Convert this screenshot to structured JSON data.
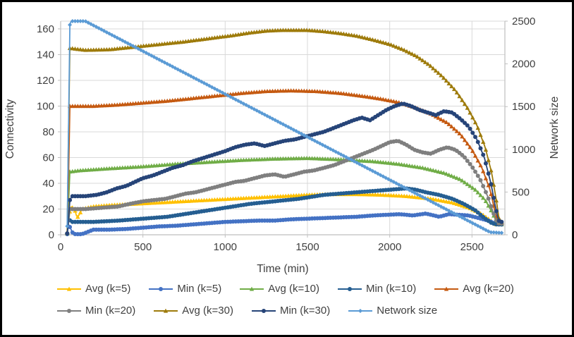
{
  "chart_data": {
    "type": "line",
    "title": "",
    "xlabel": "Time (min)",
    "ylabel_left": "Connectivity",
    "ylabel_right": "Network size",
    "x_ticks": [
      0,
      500,
      1000,
      1500,
      2000,
      2500
    ],
    "y_left_ticks": [
      0,
      20,
      40,
      60,
      80,
      100,
      120,
      140,
      160
    ],
    "y_right_ticks": [
      0,
      500,
      1000,
      1500,
      2000,
      2500
    ],
    "x_range": [
      0,
      2700
    ],
    "y_left_range": [
      0,
      166
    ],
    "y_right_range": [
      0,
      2500
    ],
    "grid": true,
    "legend_position": "bottom",
    "marker_interval_min": 16,
    "series": [
      {
        "name": "Avg (k=5)",
        "color": "#FFC000",
        "marker": "triangle",
        "axis": "left",
        "points": [
          [
            40,
            1
          ],
          [
            52,
            14
          ],
          [
            60,
            22
          ],
          [
            85,
            20
          ],
          [
            100,
            13
          ],
          [
            115,
            16
          ],
          [
            130,
            20
          ],
          [
            200,
            22
          ],
          [
            300,
            23
          ],
          [
            450,
            24
          ],
          [
            600,
            25
          ],
          [
            750,
            26
          ],
          [
            900,
            27
          ],
          [
            1050,
            28
          ],
          [
            1200,
            29
          ],
          [
            1350,
            30
          ],
          [
            1500,
            31
          ],
          [
            1650,
            31.5
          ],
          [
            1800,
            31.5
          ],
          [
            1950,
            31
          ],
          [
            2100,
            30
          ],
          [
            2250,
            28
          ],
          [
            2380,
            25
          ],
          [
            2480,
            21
          ],
          [
            2560,
            16
          ],
          [
            2615,
            11
          ],
          [
            2645,
            8
          ],
          [
            2690,
            8
          ]
        ]
      },
      {
        "name": "Min (k=5)",
        "color": "#4472C4",
        "marker": "circle",
        "axis": "left",
        "points": [
          [
            40,
            0.5
          ],
          [
            48,
            8
          ],
          [
            60,
            5
          ],
          [
            75,
            1
          ],
          [
            90,
            0.5
          ],
          [
            130,
            0.5
          ],
          [
            160,
            2
          ],
          [
            200,
            4
          ],
          [
            300,
            4
          ],
          [
            400,
            4.5
          ],
          [
            500,
            5.5
          ],
          [
            600,
            6.5
          ],
          [
            700,
            7
          ],
          [
            800,
            8
          ],
          [
            900,
            9
          ],
          [
            1000,
            10
          ],
          [
            1100,
            10.5
          ],
          [
            1200,
            11
          ],
          [
            1300,
            11
          ],
          [
            1400,
            12
          ],
          [
            1500,
            12.5
          ],
          [
            1600,
            13
          ],
          [
            1700,
            13.5
          ],
          [
            1800,
            14
          ],
          [
            1900,
            15
          ],
          [
            1980,
            15.5
          ],
          [
            2060,
            16
          ],
          [
            2140,
            15
          ],
          [
            2220,
            16.5
          ],
          [
            2300,
            14
          ],
          [
            2360,
            16
          ],
          [
            2420,
            15.5
          ],
          [
            2480,
            15
          ],
          [
            2540,
            13
          ],
          [
            2600,
            11
          ],
          [
            2645,
            8.5
          ],
          [
            2690,
            8
          ]
        ]
      },
      {
        "name": "Avg (k=10)",
        "color": "#70AD47",
        "marker": "triangle",
        "axis": "left",
        "points": [
          [
            40,
            1
          ],
          [
            50,
            30
          ],
          [
            56,
            49
          ],
          [
            120,
            50
          ],
          [
            300,
            51.5
          ],
          [
            500,
            53
          ],
          [
            700,
            55
          ],
          [
            900,
            56.5
          ],
          [
            1100,
            58
          ],
          [
            1300,
            59
          ],
          [
            1500,
            59.5
          ],
          [
            1700,
            58.5
          ],
          [
            1900,
            57
          ],
          [
            2050,
            55
          ],
          [
            2200,
            52
          ],
          [
            2330,
            48
          ],
          [
            2430,
            43
          ],
          [
            2520,
            35
          ],
          [
            2580,
            27
          ],
          [
            2620,
            18
          ],
          [
            2650,
            10
          ],
          [
            2665,
            8
          ],
          [
            2690,
            8
          ]
        ]
      },
      {
        "name": "Min (k=10)",
        "color": "#255E91",
        "marker": "circle",
        "axis": "left",
        "points": [
          [
            40,
            1
          ],
          [
            50,
            13
          ],
          [
            60,
            10
          ],
          [
            200,
            10
          ],
          [
            350,
            11
          ],
          [
            500,
            12.5
          ],
          [
            650,
            14
          ],
          [
            800,
            17
          ],
          [
            900,
            19
          ],
          [
            1000,
            21
          ],
          [
            1150,
            24
          ],
          [
            1300,
            26
          ],
          [
            1450,
            28
          ],
          [
            1600,
            31
          ],
          [
            1700,
            32
          ],
          [
            1800,
            33
          ],
          [
            1900,
            34
          ],
          [
            2000,
            35
          ],
          [
            2100,
            36
          ],
          [
            2160,
            35
          ],
          [
            2220,
            33
          ],
          [
            2300,
            31
          ],
          [
            2380,
            28
          ],
          [
            2450,
            24
          ],
          [
            2520,
            19
          ],
          [
            2575,
            13
          ],
          [
            2620,
            9
          ],
          [
            2650,
            8
          ],
          [
            2690,
            8
          ]
        ]
      },
      {
        "name": "Avg (k=20)",
        "color": "#C55A11",
        "marker": "triangle",
        "axis": "left",
        "points": [
          [
            40,
            2
          ],
          [
            48,
            45
          ],
          [
            52,
            82
          ],
          [
            56,
            100
          ],
          [
            200,
            100
          ],
          [
            350,
            101
          ],
          [
            500,
            102.5
          ],
          [
            650,
            104
          ],
          [
            800,
            106
          ],
          [
            950,
            108
          ],
          [
            1100,
            110
          ],
          [
            1250,
            111.5
          ],
          [
            1400,
            112
          ],
          [
            1550,
            111.5
          ],
          [
            1700,
            110
          ],
          [
            1850,
            107.5
          ],
          [
            1950,
            105.5
          ],
          [
            2050,
            103
          ],
          [
            2150,
            99
          ],
          [
            2250,
            94
          ],
          [
            2350,
            87
          ],
          [
            2430,
            78
          ],
          [
            2500,
            66
          ],
          [
            2560,
            52
          ],
          [
            2610,
            35
          ],
          [
            2645,
            15
          ],
          [
            2660,
            9
          ],
          [
            2690,
            9
          ]
        ]
      },
      {
        "name": "Min (k=20)",
        "color": "#7F7F7F",
        "marker": "circle",
        "axis": "left",
        "points": [
          [
            40,
            1
          ],
          [
            50,
            12
          ],
          [
            56,
            20
          ],
          [
            150,
            20
          ],
          [
            250,
            21
          ],
          [
            350,
            22
          ],
          [
            420,
            24
          ],
          [
            500,
            26
          ],
          [
            570,
            27
          ],
          [
            640,
            28
          ],
          [
            700,
            30
          ],
          [
            760,
            32
          ],
          [
            820,
            33
          ],
          [
            880,
            35
          ],
          [
            940,
            37
          ],
          [
            1000,
            39
          ],
          [
            1060,
            41
          ],
          [
            1120,
            42
          ],
          [
            1180,
            44
          ],
          [
            1240,
            46
          ],
          [
            1300,
            47
          ],
          [
            1360,
            45
          ],
          [
            1420,
            47
          ],
          [
            1480,
            49
          ],
          [
            1540,
            50
          ],
          [
            1600,
            52
          ],
          [
            1660,
            54
          ],
          [
            1720,
            57
          ],
          [
            1780,
            60
          ],
          [
            1840,
            63
          ],
          [
            1900,
            66
          ],
          [
            1950,
            69
          ],
          [
            2000,
            72
          ],
          [
            2050,
            73
          ],
          [
            2100,
            70
          ],
          [
            2150,
            66
          ],
          [
            2200,
            64
          ],
          [
            2250,
            63
          ],
          [
            2300,
            66
          ],
          [
            2350,
            68
          ],
          [
            2400,
            66
          ],
          [
            2450,
            61
          ],
          [
            2500,
            53
          ],
          [
            2550,
            43
          ],
          [
            2595,
            30
          ],
          [
            2630,
            17
          ],
          [
            2655,
            9
          ],
          [
            2690,
            8.5
          ]
        ]
      },
      {
        "name": "Avg (k=30)",
        "color": "#9E7B0B",
        "marker": "triangle",
        "axis": "left",
        "points": [
          [
            40,
            2
          ],
          [
            48,
            80
          ],
          [
            52,
            125
          ],
          [
            56,
            145
          ],
          [
            150,
            143.5
          ],
          [
            300,
            144
          ],
          [
            450,
            146
          ],
          [
            600,
            148
          ],
          [
            750,
            150
          ],
          [
            900,
            152.5
          ],
          [
            1050,
            155
          ],
          [
            1150,
            157
          ],
          [
            1250,
            158.5
          ],
          [
            1350,
            159
          ],
          [
            1500,
            159
          ],
          [
            1600,
            158
          ],
          [
            1700,
            156.5
          ],
          [
            1800,
            154.5
          ],
          [
            1900,
            151.5
          ],
          [
            2000,
            148
          ],
          [
            2080,
            144
          ],
          [
            2160,
            139
          ],
          [
            2240,
            132
          ],
          [
            2320,
            123
          ],
          [
            2400,
            112
          ],
          [
            2470,
            99
          ],
          [
            2530,
            85
          ],
          [
            2580,
            68
          ],
          [
            2620,
            48
          ],
          [
            2650,
            25
          ],
          [
            2665,
            12
          ],
          [
            2675,
            10
          ],
          [
            2690,
            10
          ]
        ]
      },
      {
        "name": "Min (k=30)",
        "color": "#264478",
        "marker": "circle",
        "axis": "left",
        "points": [
          [
            40,
            1
          ],
          [
            50,
            15
          ],
          [
            56,
            27
          ],
          [
            70,
            30
          ],
          [
            150,
            30
          ],
          [
            220,
            31
          ],
          [
            280,
            33
          ],
          [
            340,
            36
          ],
          [
            400,
            38
          ],
          [
            450,
            41
          ],
          [
            500,
            44
          ],
          [
            560,
            46
          ],
          [
            620,
            49
          ],
          [
            680,
            52
          ],
          [
            740,
            54
          ],
          [
            800,
            57
          ],
          [
            850,
            59
          ],
          [
            900,
            61
          ],
          [
            950,
            63
          ],
          [
            1000,
            65
          ],
          [
            1060,
            68
          ],
          [
            1120,
            70
          ],
          [
            1180,
            71
          ],
          [
            1240,
            69
          ],
          [
            1300,
            71
          ],
          [
            1360,
            73
          ],
          [
            1420,
            74
          ],
          [
            1480,
            76
          ],
          [
            1540,
            78
          ],
          [
            1600,
            80
          ],
          [
            1660,
            83
          ],
          [
            1720,
            86
          ],
          [
            1780,
            89
          ],
          [
            1830,
            91
          ],
          [
            1880,
            89
          ],
          [
            1930,
            93
          ],
          [
            1980,
            97
          ],
          [
            2030,
            100
          ],
          [
            2080,
            102
          ],
          [
            2130,
            100
          ],
          [
            2180,
            97
          ],
          [
            2230,
            95
          ],
          [
            2280,
            93
          ],
          [
            2330,
            96
          ],
          [
            2380,
            95
          ],
          [
            2430,
            90
          ],
          [
            2480,
            84
          ],
          [
            2530,
            74
          ],
          [
            2575,
            60
          ],
          [
            2615,
            40
          ],
          [
            2645,
            20
          ],
          [
            2662,
            11
          ],
          [
            2675,
            10
          ],
          [
            2690,
            10
          ]
        ]
      },
      {
        "name": "Network size",
        "color": "#5B9BD5",
        "marker": "diamond",
        "axis": "right",
        "points": [
          [
            40,
            100
          ],
          [
            48,
            1250
          ],
          [
            55,
            2450
          ],
          [
            62,
            2500
          ],
          [
            150,
            2500
          ],
          [
            2610,
            30
          ],
          [
            2655,
            25
          ],
          [
            2690,
            22
          ]
        ]
      }
    ]
  },
  "style_colors": {
    "gridline": "#D9D9D9",
    "axis_line": "#BFBFBF",
    "label_text": "#404040"
  }
}
